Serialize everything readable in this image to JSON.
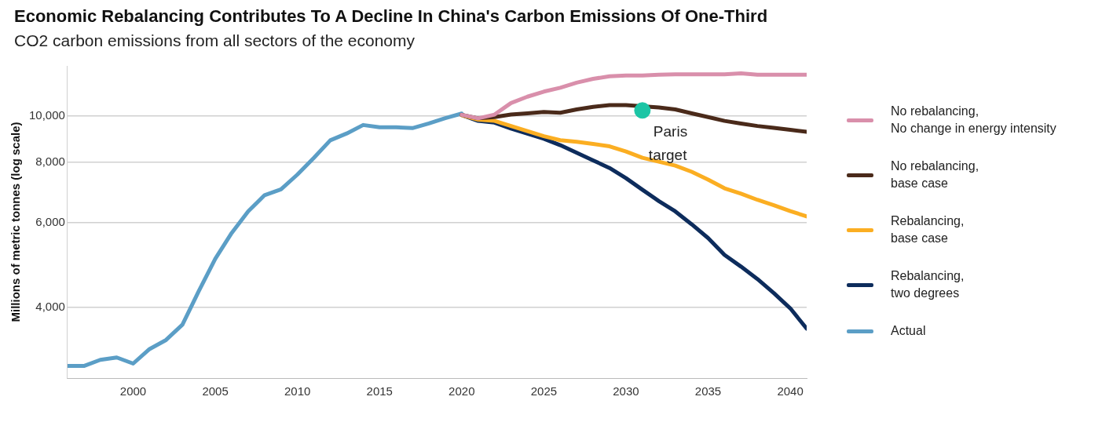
{
  "chart_data": {
    "type": "line",
    "title": "Economic Rebalancing Contributes To A Decline In China's Carbon Emissions Of One-Third",
    "subtitle": "CO2 carbon emissions from all sectors of the economy",
    "ylabel": "Millions of metric tonnes (log scale)",
    "log": "y",
    "grid": "y",
    "legend": "right",
    "marker": "none",
    "line_style": "solid",
    "xlim": [
      1996,
      2041
    ],
    "xticks": [
      2000,
      2005,
      2010,
      2015,
      2020,
      2025,
      2030,
      2035,
      2040
    ],
    "ylim": [
      2850,
      12700
    ],
    "yticks": [
      {
        "value": 4000,
        "label": "4,000"
      },
      {
        "value": 6000,
        "label": "6,000"
      },
      {
        "value": 8000,
        "label": "8,000"
      },
      {
        "value": 10000,
        "label": "10,000"
      }
    ],
    "series": [
      {
        "name": "No rebalancing,\nNo change in energy intensity",
        "color": "#d98fab",
        "x": [
          2020,
          2021,
          2022,
          2023,
          2024,
          2025,
          2026,
          2027,
          2028,
          2029,
          2030,
          2031,
          2032,
          2033,
          2034,
          2035,
          2036,
          2037,
          2038,
          2039,
          2040,
          2041
        ],
        "values": [
          10050,
          9880,
          10060,
          10630,
          10960,
          11230,
          11440,
          11720,
          11935,
          12085,
          12130,
          12130,
          12170,
          12200,
          12200,
          12200,
          12200,
          12250,
          12170,
          12170,
          12170,
          12170
        ]
      },
      {
        "name": "No rebalancing,\nbase case",
        "color": "#4a2a1a",
        "x": [
          2020,
          2021,
          2022,
          2023,
          2024,
          2025,
          2026,
          2027,
          2028,
          2029,
          2030,
          2031,
          2032,
          2033,
          2034,
          2035,
          2036,
          2037,
          2038,
          2039,
          2040,
          2041
        ],
        "values": [
          10050,
          9880,
          9940,
          10060,
          10120,
          10185,
          10150,
          10310,
          10440,
          10525,
          10525,
          null,
          10410,
          10310,
          10120,
          9940,
          9760,
          9640,
          9525,
          9440,
          9350,
          9260
        ]
      },
      {
        "name": "Rebalancing,\nbase case",
        "color": "#fbae22",
        "x": [
          2020,
          2021,
          2022,
          2023,
          2024,
          2025,
          2026,
          2027,
          2028,
          2029,
          2030,
          2031,
          2032,
          2033,
          2034,
          2035,
          2036,
          2037,
          2038,
          2039,
          2040,
          2041
        ],
        "values": [
          10035,
          9820,
          9760,
          9525,
          9295,
          9070,
          8900,
          8830,
          8740,
          8640,
          8430,
          8180,
          8030,
          7880,
          7650,
          7370,
          7070,
          6890,
          6690,
          6520,
          6340,
          6180
        ]
      },
      {
        "name": "Rebalancing,\ntwo degrees",
        "color": "#0d2c5c",
        "x": [
          2020,
          2021,
          2022,
          2023,
          2024,
          2025,
          2026,
          2027,
          2028,
          2029,
          2030,
          2031,
          2032,
          2033,
          2034,
          2035,
          2036,
          2037,
          2038,
          2039,
          2040,
          2041
        ],
        "values": [
          10035,
          9760,
          9680,
          9410,
          9180,
          8960,
          8690,
          8380,
          8080,
          7790,
          7420,
          7020,
          6650,
          6330,
          5950,
          5570,
          5140,
          4860,
          4580,
          4280,
          3980,
          3610
        ]
      },
      {
        "name": "Actual",
        "color": "#5b9ec6",
        "x": [
          1996,
          1997,
          1998,
          1999,
          2000,
          2001,
          2002,
          2003,
          2004,
          2005,
          2006,
          2007,
          2008,
          2009,
          2010,
          2011,
          2012,
          2013,
          2014,
          2015,
          2016,
          2017,
          2018,
          2019,
          2020
        ],
        "values": [
          3020,
          3020,
          3110,
          3145,
          3055,
          3275,
          3420,
          3680,
          4325,
          5045,
          5710,
          6330,
          6840,
          7035,
          7550,
          8180,
          8895,
          9190,
          9570,
          9465,
          9465,
          9430,
          9640,
          9890,
          10110
        ]
      },
      {
        "name": "Paris\ntarget",
        "type": "scatter",
        "color": "#1cc5a5",
        "x": [
          2031
        ],
        "values": [
          10260
        ],
        "marker": "circle"
      }
    ]
  }
}
